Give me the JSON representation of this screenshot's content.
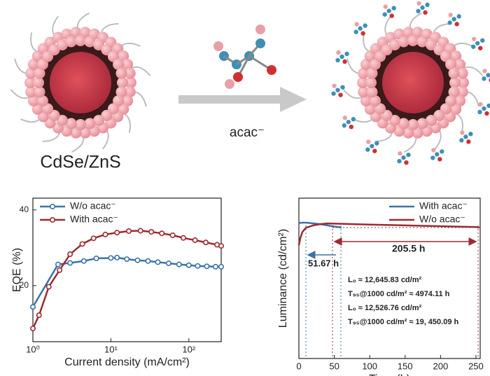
{
  "schematic": {
    "reagent_label": "acac⁻",
    "qd_label": "CdSe/ZnS"
  },
  "chart_data": [
    {
      "type": "line",
      "x_label": "Current density (mA/cm²)",
      "y_label": "EQE (%)",
      "log_x": true,
      "markers": true,
      "legend": "upper left",
      "xlim": [
        1,
        260
      ],
      "xticks": [
        {
          "value": 1,
          "label": "10⁰"
        },
        {
          "value": 10,
          "label": "10¹"
        },
        {
          "value": 100,
          "label": "10²"
        }
      ],
      "ylim": [
        5.2,
        43.1
      ],
      "yticks": [
        20,
        40
      ],
      "series": [
        {
          "name": "W/o acac⁻",
          "color": "#3b73a9",
          "x": [
            1,
            2.1,
            3.0,
            4.5,
            6.5,
            10,
            12,
            16,
            22,
            30,
            40,
            55,
            75,
            100,
            130,
            170,
            220,
            260
          ],
          "values": [
            14.4,
            25.6,
            26.0,
            26.5,
            27.2,
            27.3,
            27.4,
            27.0,
            26.7,
            26.5,
            26.2,
            25.9,
            25.6,
            25.4,
            25.2,
            25.1,
            25.0,
            25.0
          ]
        },
        {
          "name": "With acac⁻",
          "color": "#9c2a30",
          "x": [
            1,
            1.2,
            1.6,
            2.2,
            3.0,
            4.3,
            6,
            8.5,
            12,
            17,
            24,
            33,
            45,
            62,
            85,
            120,
            165,
            230,
            260
          ],
          "values": [
            8.7,
            12.2,
            19.7,
            24.1,
            28.3,
            31.0,
            32.5,
            33.5,
            34.0,
            34.4,
            34.5,
            34.2,
            33.8,
            33.3,
            32.6,
            32.0,
            31.4,
            30.8,
            30.5
          ]
        }
      ]
    },
    {
      "type": "line",
      "x_label": "Time (h)",
      "y_label": "Luminance (cd/cm²)",
      "log_x": false,
      "markers": false,
      "legend": "upper right",
      "xlim": [
        0,
        256
      ],
      "xticks": [
        0,
        50,
        100,
        150,
        200,
        250
      ],
      "ylim": [
        0,
        100
      ],
      "series": [
        {
          "name": "With acac⁻",
          "color": "#3b73a9",
          "x": [
            0,
            5,
            10,
            20,
            30,
            40,
            50,
            60
          ],
          "values": [
            84.5,
            84.7,
            84.7,
            84.3,
            83.8,
            83.0,
            82.3,
            81.7
          ]
        },
        {
          "name": "W/o acac⁻",
          "color": "#9c2a30",
          "x": [
            0,
            2,
            5,
            10,
            20,
            30,
            40,
            60,
            100,
            150,
            200,
            250,
            255
          ],
          "values": [
            70.7,
            75,
            79,
            81.5,
            83,
            83.8,
            84.2,
            84,
            83.5,
            83,
            82.5,
            82,
            81.7
          ]
        }
      ],
      "annotations": [
        "51.67 h",
        "205.5 h",
        "L₀ ≈ 12,645.83 cd/m²",
        "T₉₅@1000 cd/m² ≈ 4974.11 h",
        "L₀ ≈ 12,526.76 cd/m²",
        "T₉₅@1000 cd/m² ≈ 19, 450.09 h"
      ]
    }
  ]
}
